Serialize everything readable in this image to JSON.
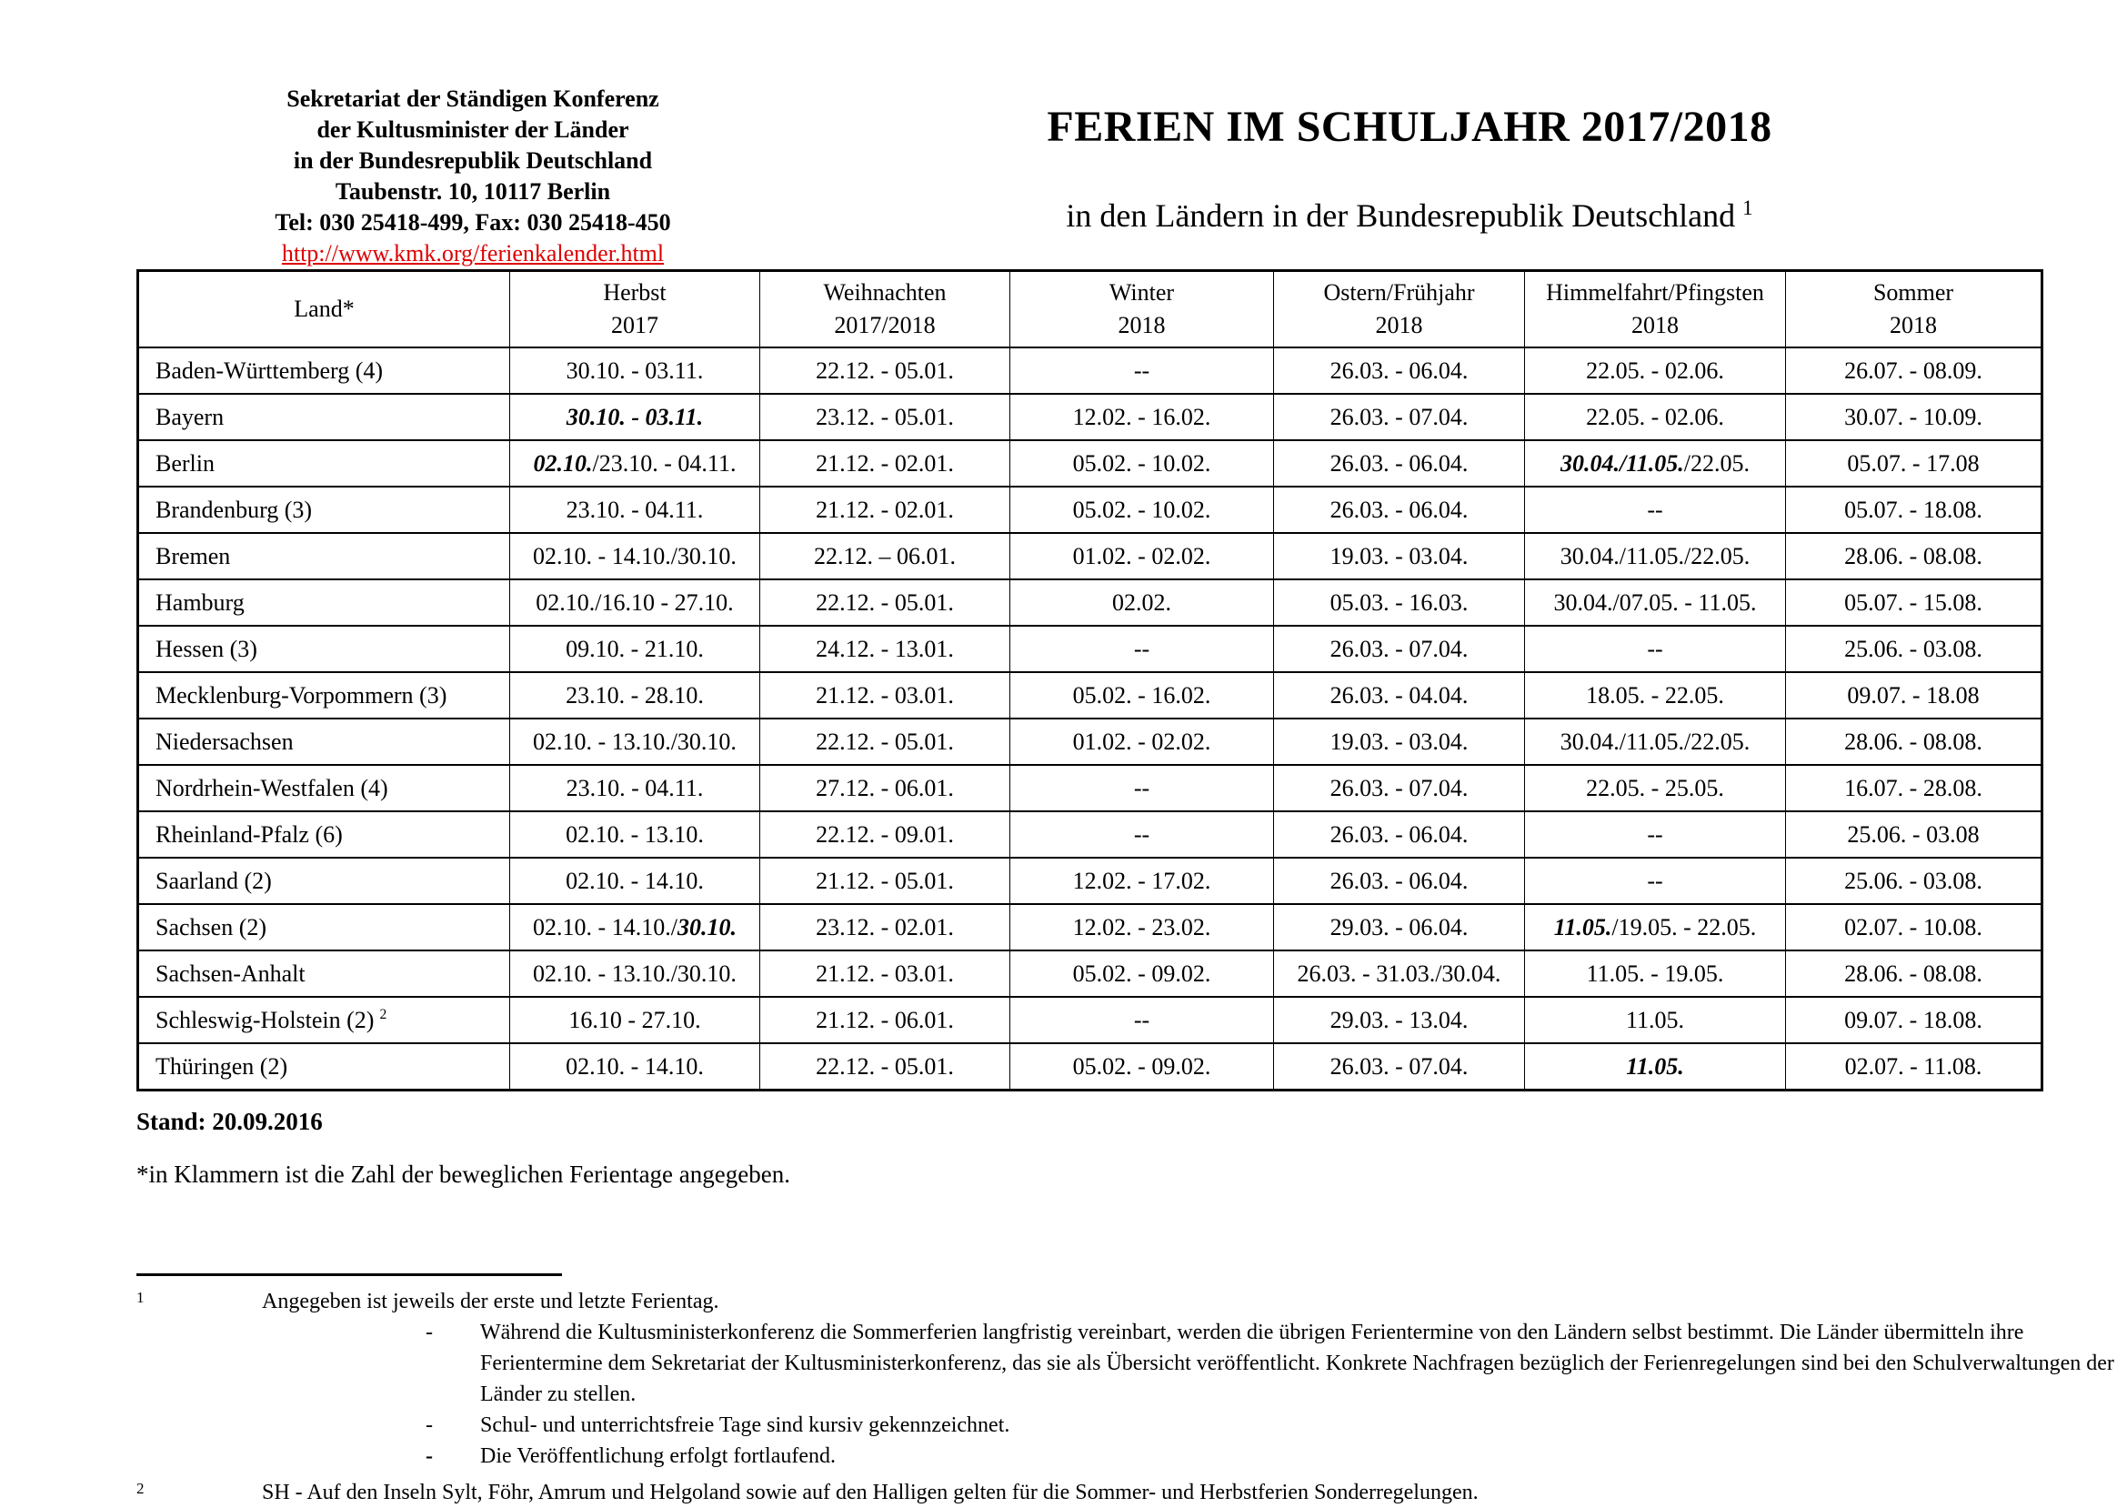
{
  "sender": {
    "lines": [
      "Sekretariat der Ständigen Konferenz",
      "der Kultusminister der Länder",
      "in der Bundesrepublik Deutschland",
      "Taubenstr. 10, 10117 Berlin",
      "Tel: 030 25418-499, Fax: 030 25418-450"
    ],
    "link": "http://www.kmk.org/ferienkalender.html"
  },
  "header": {
    "title": "FERIEN IM SCHULJAHR 2017/2018",
    "subtitle": "in den Ländern in der Bundesrepublik Deutschland",
    "subtitle_ref": "1"
  },
  "table": {
    "columns": [
      {
        "label": "Land*",
        "sub": ""
      },
      {
        "label": "Herbst",
        "sub": "2017"
      },
      {
        "label": "Weihnachten",
        "sub": "2017/2018"
      },
      {
        "label": "Winter",
        "sub": "2018"
      },
      {
        "label": "Ostern/Frühjahr",
        "sub": "2018"
      },
      {
        "label": "Himmelfahrt/Pfingsten",
        "sub": "2018"
      },
      {
        "label": "Sommer",
        "sub": "2018"
      }
    ],
    "rows": [
      {
        "cells": [
          [
            {
              "t": "Baden-Württemberg (4)"
            }
          ],
          [
            {
              "t": "30.10. - 03.11."
            }
          ],
          [
            {
              "t": "22.12. - 05.01."
            }
          ],
          [
            {
              "t": "--"
            }
          ],
          [
            {
              "t": "26.03. - 06.04."
            }
          ],
          [
            {
              "t": "22.05. - 02.06."
            }
          ],
          [
            {
              "t": "26.07. - 08.09."
            }
          ]
        ]
      },
      {
        "cells": [
          [
            {
              "t": "Bayern"
            }
          ],
          [
            {
              "t": "30.10. - 03.11.",
              "i": true
            }
          ],
          [
            {
              "t": "23.12. - 05.01."
            }
          ],
          [
            {
              "t": "12.02. - 16.02."
            }
          ],
          [
            {
              "t": "26.03. - 07.04."
            }
          ],
          [
            {
              "t": "22.05. - 02.06."
            }
          ],
          [
            {
              "t": "30.07. - 10.09."
            }
          ]
        ]
      },
      {
        "cells": [
          [
            {
              "t": "Berlin"
            }
          ],
          [
            {
              "t": "02.10.",
              "i": true
            },
            {
              "t": "/23.10. - 04.11."
            }
          ],
          [
            {
              "t": "21.12. - 02.01."
            }
          ],
          [
            {
              "t": "05.02. - 10.02."
            }
          ],
          [
            {
              "t": "26.03. - 06.04."
            }
          ],
          [
            {
              "t": "30.04./11.05.",
              "i": true
            },
            {
              "t": "/22.05."
            }
          ],
          [
            {
              "t": "05.07. - 17.08"
            }
          ]
        ]
      },
      {
        "cells": [
          [
            {
              "t": "Brandenburg (3)"
            }
          ],
          [
            {
              "t": "23.10. - 04.11."
            }
          ],
          [
            {
              "t": "21.12. - 02.01."
            }
          ],
          [
            {
              "t": "05.02. - 10.02."
            }
          ],
          [
            {
              "t": "26.03. - 06.04."
            }
          ],
          [
            {
              "t": "--"
            }
          ],
          [
            {
              "t": "05.07. - 18.08."
            }
          ]
        ]
      },
      {
        "cells": [
          [
            {
              "t": "Bremen"
            }
          ],
          [
            {
              "t": "02.10. - 14.10./30.10."
            }
          ],
          [
            {
              "t": "22.12. – 06.01."
            }
          ],
          [
            {
              "t": "01.02. - 02.02."
            }
          ],
          [
            {
              "t": "19.03. - 03.04."
            }
          ],
          [
            {
              "t": "30.04./11.05./22.05."
            }
          ],
          [
            {
              "t": "28.06. - 08.08."
            }
          ]
        ]
      },
      {
        "cells": [
          [
            {
              "t": "Hamburg"
            }
          ],
          [
            {
              "t": "02.10./16.10 - 27.10."
            }
          ],
          [
            {
              "t": "22.12. - 05.01."
            }
          ],
          [
            {
              "t": "02.02."
            }
          ],
          [
            {
              "t": "05.03. - 16.03."
            }
          ],
          [
            {
              "t": "30.04./07.05. - 11.05."
            }
          ],
          [
            {
              "t": "05.07. - 15.08."
            }
          ]
        ]
      },
      {
        "cells": [
          [
            {
              "t": "Hessen (3)"
            }
          ],
          [
            {
              "t": "09.10. - 21.10."
            }
          ],
          [
            {
              "t": "24.12. - 13.01."
            }
          ],
          [
            {
              "t": "--"
            }
          ],
          [
            {
              "t": "26.03. - 07.04."
            }
          ],
          [
            {
              "t": "--"
            }
          ],
          [
            {
              "t": "25.06. - 03.08."
            }
          ]
        ]
      },
      {
        "cells": [
          [
            {
              "t": "Mecklenburg-Vorpommern (3)"
            }
          ],
          [
            {
              "t": "23.10. - 28.10."
            }
          ],
          [
            {
              "t": "21.12. - 03.01."
            }
          ],
          [
            {
              "t": "05.02. - 16.02."
            }
          ],
          [
            {
              "t": "26.03. - 04.04."
            }
          ],
          [
            {
              "t": "18.05. - 22.05."
            }
          ],
          [
            {
              "t": "09.07. - 18.08"
            }
          ]
        ]
      },
      {
        "cells": [
          [
            {
              "t": "Niedersachsen"
            }
          ],
          [
            {
              "t": "02.10. - 13.10./30.10."
            }
          ],
          [
            {
              "t": "22.12. - 05.01."
            }
          ],
          [
            {
              "t": "01.02. - 02.02."
            }
          ],
          [
            {
              "t": "19.03. - 03.04."
            }
          ],
          [
            {
              "t": "30.04./11.05./22.05."
            }
          ],
          [
            {
              "t": "28.06. - 08.08."
            }
          ]
        ]
      },
      {
        "cells": [
          [
            {
              "t": "Nordrhein-Westfalen (4)"
            }
          ],
          [
            {
              "t": "23.10. - 04.11."
            }
          ],
          [
            {
              "t": "27.12. - 06.01."
            }
          ],
          [
            {
              "t": "--"
            }
          ],
          [
            {
              "t": "26.03. - 07.04."
            }
          ],
          [
            {
              "t": "22.05. - 25.05."
            }
          ],
          [
            {
              "t": "16.07. - 28.08."
            }
          ]
        ]
      },
      {
        "cells": [
          [
            {
              "t": "Rheinland-Pfalz (6)"
            }
          ],
          [
            {
              "t": "02.10. - 13.10."
            }
          ],
          [
            {
              "t": "22.12. - 09.01."
            }
          ],
          [
            {
              "t": "--"
            }
          ],
          [
            {
              "t": "26.03. - 06.04."
            }
          ],
          [
            {
              "t": "--"
            }
          ],
          [
            {
              "t": "25.06. - 03.08"
            }
          ]
        ]
      },
      {
        "cells": [
          [
            {
              "t": "Saarland (2)"
            }
          ],
          [
            {
              "t": "02.10. - 14.10."
            }
          ],
          [
            {
              "t": "21.12. - 05.01."
            }
          ],
          [
            {
              "t": "12.02. - 17.02."
            }
          ],
          [
            {
              "t": "26.03. - 06.04."
            }
          ],
          [
            {
              "t": "--"
            }
          ],
          [
            {
              "t": "25.06. - 03.08."
            }
          ]
        ]
      },
      {
        "cells": [
          [
            {
              "t": "Sachsen (2)"
            }
          ],
          [
            {
              "t": "02.10. - 14.10./"
            },
            {
              "t": "30.10.",
              "i": true
            }
          ],
          [
            {
              "t": "23.12. - 02.01."
            }
          ],
          [
            {
              "t": "12.02. - 23.02."
            }
          ],
          [
            {
              "t": "29.03. - 06.04."
            }
          ],
          [
            {
              "t": "11.05.",
              "i": true
            },
            {
              "t": "/19.05. - 22.05."
            }
          ],
          [
            {
              "t": "02.07. - 10.08."
            }
          ]
        ]
      },
      {
        "cells": [
          [
            {
              "t": "Sachsen-Anhalt"
            }
          ],
          [
            {
              "t": "02.10. - 13.10./30.10."
            }
          ],
          [
            {
              "t": "21.12. - 03.01."
            }
          ],
          [
            {
              "t": "05.02. - 09.02."
            }
          ],
          [
            {
              "t": "26.03. - 31.03./30.04."
            }
          ],
          [
            {
              "t": "11.05. - 19.05."
            }
          ],
          [
            {
              "t": "28.06. - 08.08."
            }
          ]
        ]
      },
      {
        "cells": [
          [
            {
              "t": "Schleswig-Holstein (2)"
            },
            {
              "t": "2",
              "sup": true
            }
          ],
          [
            {
              "t": "16.10 - 27.10."
            }
          ],
          [
            {
              "t": "21.12. - 06.01."
            }
          ],
          [
            {
              "t": "--"
            }
          ],
          [
            {
              "t": "29.03. - 13.04."
            }
          ],
          [
            {
              "t": "11.05."
            }
          ],
          [
            {
              "t": "09.07. - 18.08."
            }
          ]
        ]
      },
      {
        "cells": [
          [
            {
              "t": "Thüringen (2)"
            }
          ],
          [
            {
              "t": "02.10. - 14.10."
            }
          ],
          [
            {
              "t": "22.12. - 05.01."
            }
          ],
          [
            {
              "t": "05.02. - 09.02."
            }
          ],
          [
            {
              "t": "26.03. - 07.04."
            }
          ],
          [
            {
              "t": "11.05.",
              "i": true
            }
          ],
          [
            {
              "t": "02.07. - 11.08."
            }
          ]
        ]
      }
    ]
  },
  "stand": "Stand: 20.09.2016",
  "asterisk_note": "*in Klammern ist die Zahl der beweglichen Ferientage angegeben.",
  "footnotes": {
    "note1": {
      "marker": "1",
      "intro": "Angegeben ist jeweils der erste und letzte Ferientag.",
      "items": [
        {
          "dash": "-",
          "text": "Während die Kultusministerkonferenz die Sommerferien langfristig vereinbart, werden die übrigen Ferientermine von den Ländern selbst bestimmt. Die Länder übermitteln ihre Ferientermine dem Sekretariat der Kultusministerkonferenz, das sie als Übersicht veröffentlicht. Konkrete Nachfragen bezüglich der Ferienregelungen sind bei den Schulverwaltungen der Länder zu stellen."
        },
        {
          "dash": "-",
          "text": "Schul- und unterrichtsfreie Tage sind kursiv gekennzeichnet."
        },
        {
          "dash": "-",
          "text": "Die Veröffentlichung erfolgt fortlaufend."
        }
      ]
    },
    "note2": {
      "marker": "2",
      "text": "SH - Auf den Inseln Sylt, Föhr, Amrum und Helgoland sowie auf den Halligen gelten für die Sommer- und Herbstferien Sonderregelungen."
    }
  },
  "colors": {
    "link_red": "#dd0000",
    "text": "#000000",
    "table_border": "#000000"
  }
}
